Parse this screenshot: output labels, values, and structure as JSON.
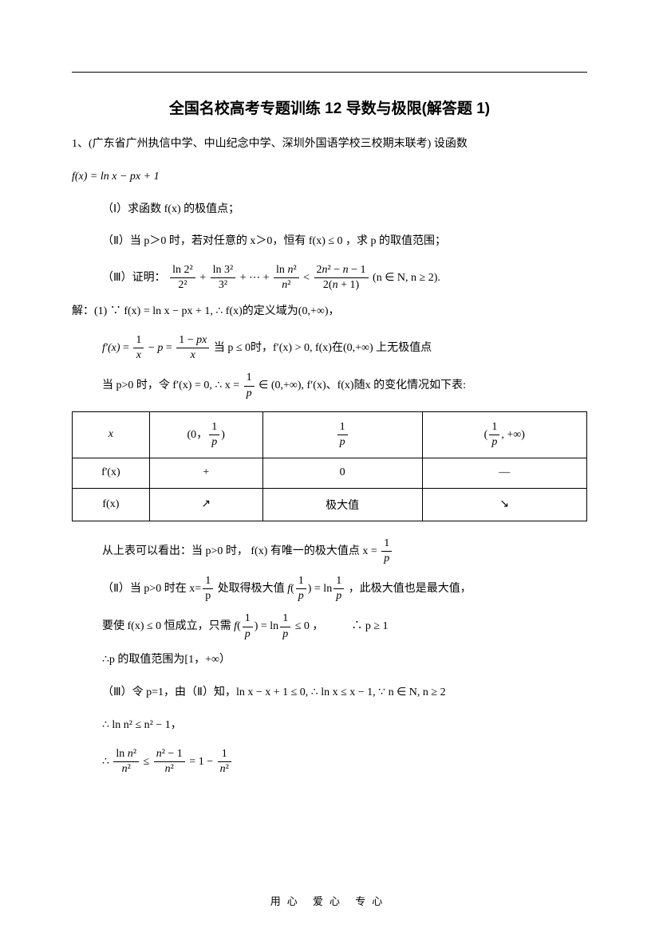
{
  "title": "全国名校高考专题训练 12 导数与极限(解答题 1)",
  "q1_intro": "1、(广东省广州执信中学、中山纪念中学、深圳外国语学校三校期末联考) 设函数",
  "q1_func": "f(x) = ln x − px + 1",
  "part1_label": "（Ⅰ）求函数 f(x) 的极值点；",
  "part2_label": "（Ⅱ）当 p＞0 时，若对任意的 x＞0，恒有 f(x) ≤ 0 ，求 p 的取值范围；",
  "part3_prefix": "（Ⅲ）证明：",
  "part3_tail": "(n ∈ N, n ≥ 2).",
  "sol_label": "解：(1)",
  "sol1_a": "∵ f(x) = ln x − px + 1, ∴ f(x)的定义域为(0,+∞)，",
  "sol1_b_suffix": "当 p ≤ 0时，f′(x) > 0, f(x)在(0,+∞)  上无极值点",
  "sol1_c_prefix": "当 p>0 时，令 f′(x) = 0, ∴ x = ",
  "sol1_c_suffix": " ∈ (0,+∞), f′(x)、f(x)随x 的变化情况如下表:",
  "table": {
    "r1": [
      "x",
      "(0，1/p)",
      "1/p",
      "(1/p, +∞)"
    ],
    "r2": [
      "f'(x)",
      "+",
      "0",
      "—"
    ],
    "r3": [
      "f(x)",
      "↗",
      "极大值",
      "↘"
    ]
  },
  "sol1_d_prefix": "从上表可以看出：当 p>0 时， f(x) 有唯一的极大值点 x = ",
  "sol2_a_prefix": "（Ⅱ）当 p>0 时在 x=",
  "sol2_a_mid": "处取得极大值 ",
  "sol2_a_suffix": "，此极大值也是最大值，",
  "sol2_b_prefix": "要使 f(x) ≤ 0 恒成立，只需 ",
  "sol2_b_suffix": " ≤ 0 ，",
  "sol2_b_conc": "∴ p ≥ 1",
  "sol2_c": "∴p 的取值范围为[1，+∞）",
  "sol3_a": "（Ⅲ）令 p=1，由（Ⅱ）知，ln x − x + 1 ≤ 0, ∴ ln x ≤ x − 1, ∵ n ∈ N, n ≥ 2",
  "sol3_b": "∴ ln n² ≤ n² − 1，",
  "sol3_c_prefix": "∴ ",
  "footer": "用心  爱心  专心"
}
